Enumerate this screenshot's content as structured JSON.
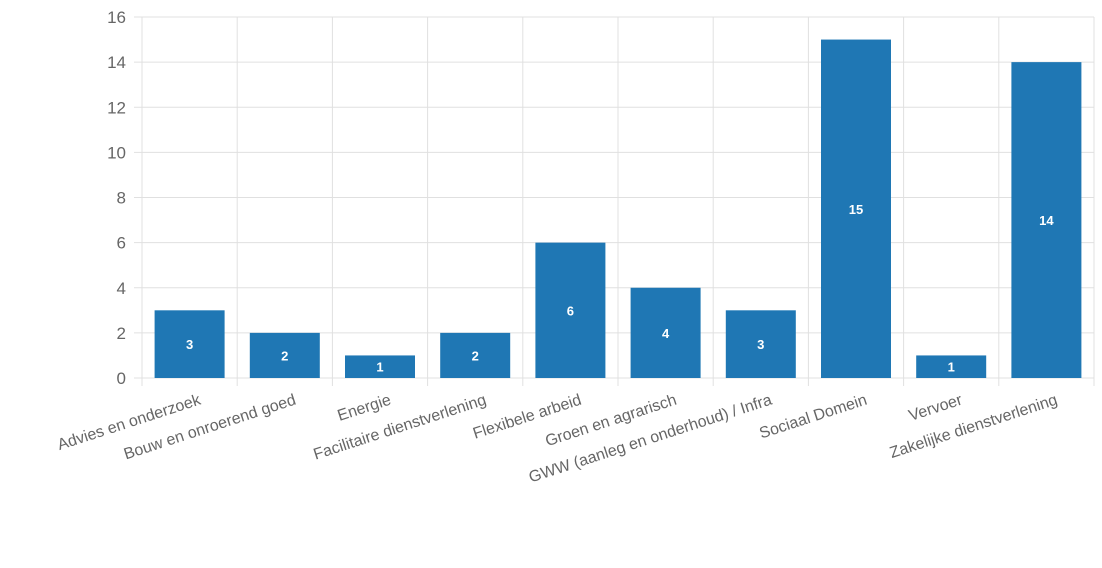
{
  "chart_data": {
    "type": "bar",
    "title": "",
    "xlabel": "",
    "ylabel": "",
    "categories": [
      "Advies en onderzoek",
      "Bouw en onroerend goed",
      "Energie",
      "Facilitaire dienstverlening",
      "Flexibele arbeid",
      "Groen en agrarisch",
      "GWW (aanleg en onderhoud) / Infra",
      "Sociaal Domein",
      "Vervoer",
      "Zakelijke dienstverlening"
    ],
    "values": [
      3,
      2,
      1,
      2,
      6,
      4,
      3,
      15,
      1,
      14
    ],
    "ylim": [
      0,
      16
    ],
    "yticks": [
      0,
      2,
      4,
      6,
      8,
      10,
      12,
      14,
      16
    ],
    "grid": true,
    "legend": "none",
    "data_labels": true,
    "bar_color": "#1f77b4",
    "grid_color": "#e0e0e0"
  }
}
